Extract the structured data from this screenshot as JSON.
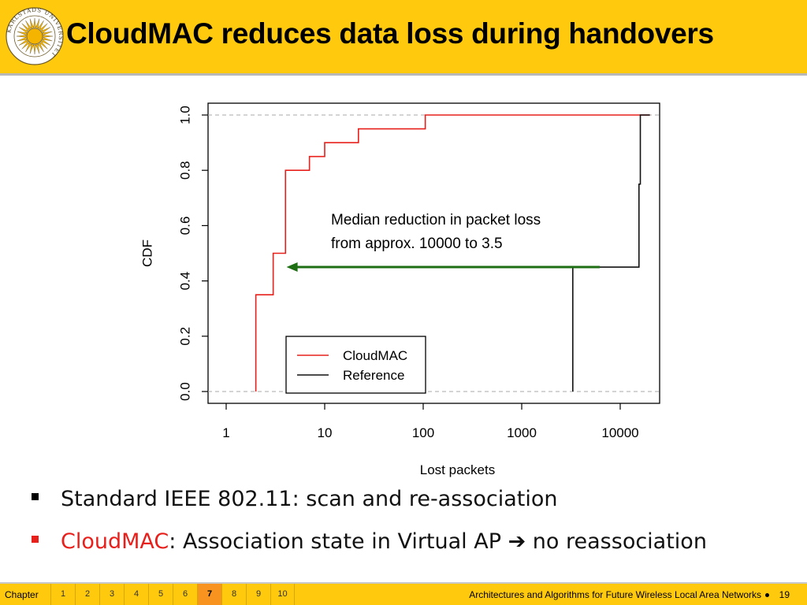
{
  "slide": {
    "title": "CloudMAC reduces data loss during handovers",
    "logo": {
      "icon": "university-sun-seal-icon",
      "text": "KARLSTADS UNIVERSITET"
    }
  },
  "chart_data": {
    "type": "line",
    "xlabel": "Lost packets",
    "ylabel": "CDF",
    "x_scale": "log",
    "xlim": [
      1,
      20000
    ],
    "ylim": [
      0,
      1
    ],
    "x_ticks": [
      1,
      10,
      100,
      1000,
      10000
    ],
    "x_tick_labels": [
      "1",
      "10",
      "100",
      "1000",
      "10000"
    ],
    "y_ticks": [
      0,
      0.2,
      0.4,
      0.6,
      0.8,
      1
    ],
    "y_tick_labels": [
      "0.0",
      "0.2",
      "0.4",
      "0.6",
      "0.8",
      "1.0"
    ],
    "reference_lines": [
      0,
      1
    ],
    "legend": {
      "position": "bottom-left",
      "entries": [
        "CloudMAC",
        "Reference"
      ]
    },
    "series": [
      {
        "name": "CloudMAC",
        "color": "#e8201c",
        "steps": [
          [
            2,
            0
          ],
          [
            2,
            0.35
          ],
          [
            3,
            0.35
          ],
          [
            3,
            0.5
          ],
          [
            4,
            0.5
          ],
          [
            4,
            0.8
          ],
          [
            7,
            0.8
          ],
          [
            7,
            0.85
          ],
          [
            10,
            0.85
          ],
          [
            10,
            0.9
          ],
          [
            22,
            0.9
          ],
          [
            22,
            0.95
          ],
          [
            105,
            0.95
          ],
          [
            105,
            1
          ],
          [
            20000,
            1
          ]
        ]
      },
      {
        "name": "Reference",
        "color": "#111111",
        "steps": [
          [
            3300,
            0
          ],
          [
            3300,
            0.45
          ],
          [
            15500,
            0.45
          ],
          [
            15500,
            0.75
          ],
          [
            16000,
            0.75
          ],
          [
            16000,
            1
          ],
          [
            20000,
            1
          ]
        ]
      }
    ],
    "annotation": {
      "lines": [
        "Median reduction in packet loss",
        "from approx. 10000 to 3.5"
      ],
      "arrow": {
        "from_x": 6200,
        "to_x": 4.1,
        "y": 0.45,
        "color": "#1e6e14"
      }
    }
  },
  "bullets": [
    {
      "marker_color": "#000000",
      "highlight": "",
      "text": "Standard IEEE 802.11: scan and re-association"
    },
    {
      "marker_color": "#e8201c",
      "highlight": "CloudMAC",
      "text": ": Association state in Virtual AP ",
      "arrow_icon": "right-arrow-icon",
      "arrow": "➔",
      "tail": " no reassociation"
    }
  ],
  "footer": {
    "chapter_label": "Chapter",
    "chapters": [
      "1",
      "2",
      "3",
      "4",
      "5",
      "6",
      "7",
      "8",
      "9",
      "10"
    ],
    "active_chapter": "7",
    "course_title": "Architectures and Algorithms for Future Wireless Local Area Networks",
    "page_number": "19"
  }
}
